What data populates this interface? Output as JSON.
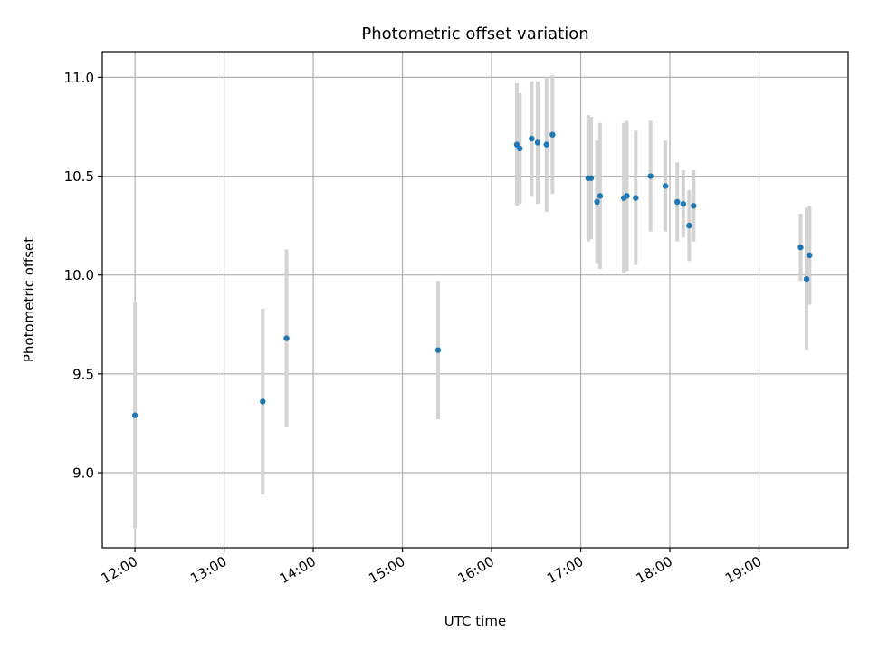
{
  "chart_data": {
    "type": "scatter",
    "title": "Photometric offset variation",
    "xlabel": "UTC time",
    "ylabel": "Photometric offset",
    "x_tick_labels": [
      "12:00",
      "13:00",
      "14:00",
      "15:00",
      "16:00",
      "17:00",
      "18:00",
      "19:00"
    ],
    "x_tick_hours": [
      12,
      13,
      14,
      15,
      16,
      17,
      18,
      19
    ],
    "y_ticks": [
      9.0,
      9.5,
      10.0,
      10.5,
      11.0
    ],
    "y_tick_labels": [
      "9.0",
      "9.5",
      "10.0",
      "10.5",
      "11.0"
    ],
    "xlim": [
      "11:38",
      "20:00"
    ],
    "ylim": [
      8.62,
      11.13
    ],
    "grid": true,
    "colors": {
      "point": "#1f77b4",
      "errorbar": "#d3d3d3",
      "grid": "#b0b0b0"
    },
    "points": [
      {
        "x": "12:00",
        "y": 9.29,
        "err": 0.57
      },
      {
        "x": "13:26",
        "y": 9.36,
        "err": 0.47
      },
      {
        "x": "13:42",
        "y": 9.68,
        "err": 0.45
      },
      {
        "x": "15:24",
        "y": 9.62,
        "err": 0.35
      },
      {
        "x": "16:17",
        "y": 10.66,
        "err": 0.31
      },
      {
        "x": "16:19",
        "y": 10.64,
        "err": 0.28
      },
      {
        "x": "16:27",
        "y": 10.69,
        "err": 0.29
      },
      {
        "x": "16:31",
        "y": 10.67,
        "err": 0.31
      },
      {
        "x": "16:37",
        "y": 10.66,
        "err": 0.34
      },
      {
        "x": "16:41",
        "y": 10.71,
        "err": 0.3
      },
      {
        "x": "17:05",
        "y": 10.49,
        "err": 0.32
      },
      {
        "x": "17:07",
        "y": 10.49,
        "err": 0.31
      },
      {
        "x": "17:11",
        "y": 10.37,
        "err": 0.31
      },
      {
        "x": "17:13",
        "y": 10.4,
        "err": 0.37
      },
      {
        "x": "17:29",
        "y": 10.39,
        "err": 0.38
      },
      {
        "x": "17:31",
        "y": 10.4,
        "err": 0.38
      },
      {
        "x": "17:37",
        "y": 10.39,
        "err": 0.34
      },
      {
        "x": "17:47",
        "y": 10.5,
        "err": 0.28
      },
      {
        "x": "17:57",
        "y": 10.45,
        "err": 0.23
      },
      {
        "x": "18:05",
        "y": 10.37,
        "err": 0.2
      },
      {
        "x": "18:09",
        "y": 10.36,
        "err": 0.17
      },
      {
        "x": "18:13",
        "y": 10.25,
        "err": 0.18
      },
      {
        "x": "18:16",
        "y": 10.35,
        "err": 0.18
      },
      {
        "x": "19:28",
        "y": 10.14,
        "err": 0.17
      },
      {
        "x": "19:32",
        "y": 9.98,
        "err": 0.36
      },
      {
        "x": "19:34",
        "y": 10.1,
        "err": 0.25
      }
    ]
  }
}
